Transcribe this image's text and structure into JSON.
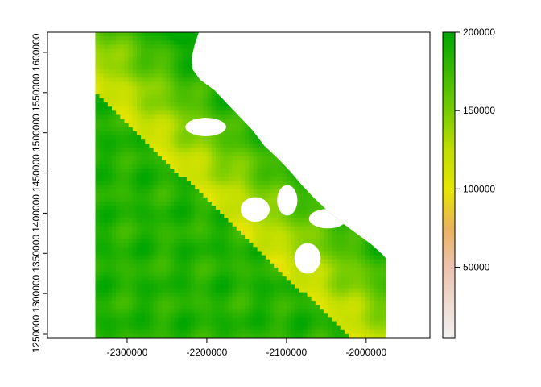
{
  "chart_data": {
    "type": "heatmap",
    "title": "",
    "xlabel": "",
    "ylabel": "",
    "xlim": [
      -2400000,
      -1920000
    ],
    "ylim": [
      1245000,
      1625000
    ],
    "x_ticks": [
      -2300000,
      -2200000,
      -2100000,
      -2000000
    ],
    "x_tick_labels": [
      "-2300000",
      "-2200000",
      "-2100000",
      "-2000000"
    ],
    "y_ticks": [
      1250000,
      1300000,
      1350000,
      1400000,
      1450000,
      1500000,
      1550000,
      1600000
    ],
    "y_tick_labels": [
      "1250000",
      "1300000",
      "1350000",
      "1400000",
      "1450000",
      "1500000",
      "1550000",
      "1600000"
    ],
    "colorbar": {
      "range": [
        5000,
        200000
      ],
      "ticks": [
        50000,
        100000,
        150000,
        200000
      ],
      "tick_labels": [
        "50000",
        "100000",
        "150000",
        "200000"
      ],
      "color_stops": [
        {
          "value": 5000,
          "color": "#F2F2F2"
        },
        {
          "value": 50000,
          "color": "#ECC2AE"
        },
        {
          "value": 75000,
          "color": "#EBB25E"
        },
        {
          "value": 100000,
          "color": "#E6E600"
        },
        {
          "value": 125000,
          "color": "#C0DE00"
        },
        {
          "value": 150000,
          "color": "#76CC00"
        },
        {
          "value": 200000,
          "color": "#00A600"
        }
      ]
    },
    "raster_extent": {
      "x": [
        -2340000,
        -1975000
      ],
      "y": [
        1245000,
        1625000
      ]
    },
    "grid": false,
    "legend_position": "right"
  }
}
